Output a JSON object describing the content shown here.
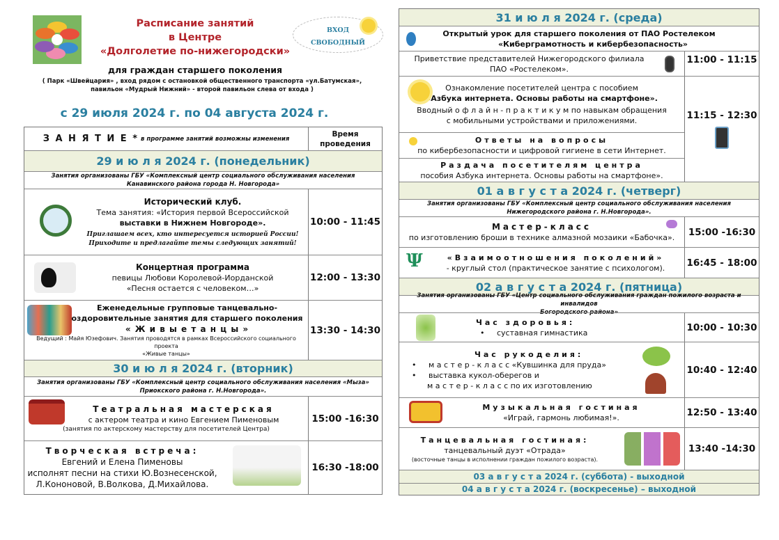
{
  "header": {
    "title_lines": [
      "Расписание занятий",
      "в Центре",
      "«Долголетие по-нижегородски»"
    ],
    "subtitle": "для граждан старшего поколения",
    "address_lines": [
      "( Парк «Швейцария» , вход рядом с остановкой общественного транспорта «ул.Батумская»,",
      "павильон «Мудрый Нижний» -   второй павильон слева от входа )"
    ],
    "free_entry": [
      "ВХОД",
      "СВОБОДНЫЙ"
    ],
    "date_range": "с 29 июля 2024 г. по 04 августа 2024 г.",
    "colors": {
      "title": "#b3242b",
      "date_range": "#2a7fa0",
      "day_header_bg": "#eef1dd"
    }
  },
  "table_head": {
    "activity": "З А Н Я Т И Е *",
    "note": "в программе занятий возможны изменения",
    "time": [
      "Время",
      "проведения"
    ]
  },
  "mon": {
    "day": "29  и ю л я 2024 г. (понедельник)",
    "org": [
      "Занятия организованы  ГБУ  «Комплексный центр социального обслуживания населения",
      "Канавинского района города Н. Новгорода»"
    ],
    "e1": {
      "title": "Исторический клуб.",
      "l2": "Тема занятия: «История первой Всероссийской",
      "l3": "выставки в Нижнем Новгороде».",
      "i1": "Приглашаем всех, кто интересуется историей России!",
      "i2": "Приходите и предлагайте темы следующих занятий!",
      "time": "10:00 - 11:45"
    },
    "e2": {
      "title": "Концертная программа",
      "l2": "певицы Любови Королевой-Иорданской",
      "l3": "«Песня остается с человеком…»",
      "time": "12:00 - 13:30"
    },
    "e3": {
      "l1": "Еженедельные групповые танцевально-",
      "l2": "оздоровительные занятия для старшего поколения",
      "l3": "« Ж и в ы е   т а н ц ы »",
      "n1": "Ведущий : Майя Юзефович. Занятия  проводятся  в рамках  Всероссийского социального проекта",
      "n2": "«Живые танцы»",
      "time": "13:30 - 14:30"
    }
  },
  "tue": {
    "day": "30 и ю л я  2024 г. (вторник)",
    "org": [
      "Занятия организованы  ГБУ «Комплексный центр социального обслуживания населения «Мыза»",
      "Приокского  района  г. Н.Новгорода»."
    ],
    "e1": {
      "title": "Театральная мастерская",
      "l2": "с актером театра и кино Евгением Пименовым",
      "l3": "(занятия   по   актерскому   мастерству   для   посетителей   Центра)",
      "time": "15:00 -16:30"
    },
    "e2": {
      "title": "Творческая встреча:",
      "l2": "Евгений и Елена Пименовы",
      "l3": "исполнят песни на стихи Ю.Вознесенской,",
      "l4": "Л.Кононовой, В.Волкова, Д.Михайлова.",
      "time": "16:30 -18:00"
    }
  },
  "wed": {
    "day": "31  и ю л я  2024 г. (среда)",
    "intro": [
      "Открытый урок для старшего поколения от ПАО Ростелеком",
      "«Киберграмотность и кибербезопасность»"
    ],
    "e1": {
      "l1": "Приветствие представителей Нижегородского филиала",
      "l2": "ПАО «Ростелеком».",
      "time": "11:00 - 11:15"
    },
    "e2": {
      "l1": "Ознакомление посетителей центра с пособием",
      "l2": "«Азбука интернета. Основы работы на смартфоне».",
      "l3": "Вводный о ф л а й н - п р а к т и к у м по навыкам обращения",
      "l4": "с мобильными устройствами и приложениями."
    },
    "e3": {
      "title": "Ответы на вопросы",
      "l2": "по кибербезопасности и цифровой гигиене в сети Интернет."
    },
    "e4": {
      "title": "Раздача посетителям центра",
      "l2": "пособия Азбука интернета. Основы работы на смартфоне»."
    },
    "time_234": "11:15 - 12:30"
  },
  "thu": {
    "day": "01  а в г у с т а   2024  г. (четверг)",
    "org": [
      "Занятия организованы  ГБУ «Комплексный центр социального обслуживания населения",
      "Нижегородского  района  г. Н.Новгорода»."
    ],
    "e1": {
      "title": "Мастер-класс",
      "l2": "по изготовлению броши в технике алмазной мозаики «Бабочка».",
      "time": "15:00 -16:30"
    },
    "e2": {
      "title": "«Взаимоотношения поколений»",
      "l2": "- круглый стол (практическое занятие с психологом).",
      "time": "16:45 - 18:00"
    }
  },
  "fri": {
    "day": "02 а в г у с т а  2024  г. (пятница)",
    "org": [
      "Занятия организованы   ГБУ «Центр социального обслуживания граждан пожилого возраста и инвалидов",
      "Богородского района»"
    ],
    "e1": {
      "title": "Час здоровья:",
      "b1": "суставная гимнастика",
      "time": "10:00 - 10:30"
    },
    "e2": {
      "title": "Час рукоделия:",
      "b1": "м а с т е р - к л а с с «Кувшинка для пруда»",
      "b2": "выставка кукол-оберегов и",
      "l3": "м а с т е р - к л а с с по их изготовлению",
      "time": "10:40 - 12:40"
    },
    "e3": {
      "title": "Музыкальная гостиная",
      "l2": "«Играй, гармонь любимая!».",
      "time": "12:50 - 13:40"
    },
    "e4": {
      "title": "Танцевальная гостиная:",
      "l2": "танцевальный дуэт  «Отрада»",
      "l3": "(восточные танцы в исполнении граждан пожилого возраста).",
      "time": "13:40 -14:30"
    }
  },
  "sat": "03  а в г у с т а  2024  г. (суббота) - выходной",
  "sun": "04  а в г у с т а  2024 г. (воскресенье)  –  выходной"
}
